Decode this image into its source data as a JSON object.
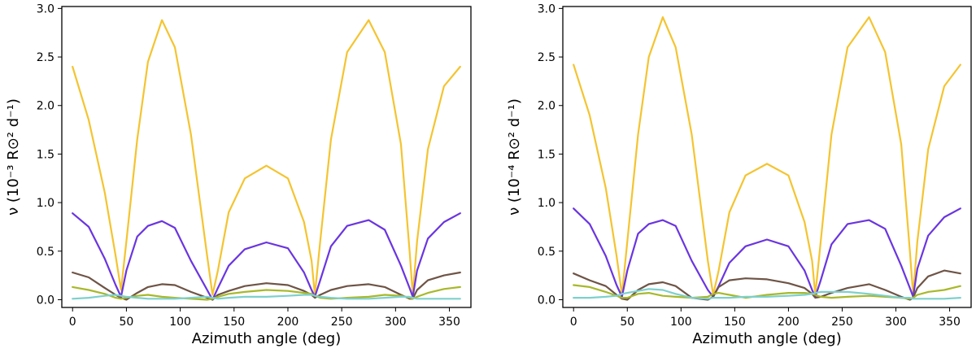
{
  "chart_data": [
    {
      "type": "line",
      "xlabel": "Azimuth angle (deg)",
      "ylabel": "ν (10⁻³ R⊙² d⁻¹)",
      "xlim": [
        -10,
        370
      ],
      "ylim": [
        -0.08,
        3.02
      ],
      "xticks": [
        "0",
        "50",
        "100",
        "150",
        "200",
        "250",
        "300",
        "350"
      ],
      "yticks": [
        "0.0",
        "0.5",
        "1.0",
        "1.5",
        "2.0",
        "2.5",
        "3.0"
      ],
      "grid": false,
      "x": [
        0,
        15,
        30,
        40,
        45,
        50,
        60,
        70,
        83,
        95,
        110,
        125,
        130,
        135,
        145,
        160,
        180,
        200,
        215,
        222,
        225,
        230,
        240,
        255,
        275,
        290,
        305,
        313,
        316,
        320,
        330,
        345,
        360
      ],
      "series": [
        {
          "color": "#f4c430",
          "values": [
            2.4,
            1.85,
            1.1,
            0.45,
            0.1,
            0.6,
            1.65,
            2.45,
            2.88,
            2.6,
            1.7,
            0.45,
            0.05,
            0.3,
            0.9,
            1.25,
            1.38,
            1.25,
            0.8,
            0.4,
            0.05,
            0.6,
            1.65,
            2.55,
            2.88,
            2.55,
            1.6,
            0.5,
            0.05,
            0.6,
            1.55,
            2.2,
            2.4
          ]
        },
        {
          "color": "#6a35e0",
          "values": [
            0.89,
            0.75,
            0.42,
            0.15,
            0.03,
            0.3,
            0.65,
            0.76,
            0.81,
            0.74,
            0.4,
            0.1,
            0.0,
            0.12,
            0.35,
            0.52,
            0.59,
            0.53,
            0.28,
            0.1,
            0.03,
            0.2,
            0.55,
            0.76,
            0.82,
            0.72,
            0.35,
            0.12,
            0.03,
            0.3,
            0.63,
            0.8,
            0.89
          ]
        },
        {
          "color": "#6e5446",
          "values": [
            0.28,
            0.23,
            0.12,
            0.05,
            0.02,
            0.0,
            0.07,
            0.13,
            0.16,
            0.15,
            0.08,
            0.02,
            0.0,
            0.05,
            0.09,
            0.14,
            0.17,
            0.15,
            0.09,
            0.05,
            0.02,
            0.05,
            0.1,
            0.14,
            0.16,
            0.13,
            0.05,
            0.01,
            0.01,
            0.1,
            0.2,
            0.25,
            0.28
          ]
        },
        {
          "color": "#a8b82a",
          "values": [
            0.13,
            0.1,
            0.06,
            0.02,
            0.01,
            0.02,
            0.04,
            0.05,
            0.03,
            0.02,
            0.01,
            0.0,
            0.01,
            0.03,
            0.06,
            0.08,
            0.1,
            0.09,
            0.07,
            0.06,
            0.04,
            0.02,
            0.01,
            0.02,
            0.03,
            0.05,
            0.04,
            0.02,
            0.01,
            0.03,
            0.07,
            0.11,
            0.13
          ]
        },
        {
          "color": "#7dd0cc",
          "values": [
            0.01,
            0.02,
            0.04,
            0.05,
            0.04,
            0.03,
            0.02,
            0.01,
            0.01,
            0.01,
            0.02,
            0.03,
            0.02,
            0.01,
            0.02,
            0.03,
            0.03,
            0.04,
            0.05,
            0.05,
            0.04,
            0.03,
            0.02,
            0.01,
            0.01,
            0.02,
            0.03,
            0.03,
            0.02,
            0.01,
            0.01,
            0.01,
            0.01
          ]
        }
      ]
    },
    {
      "type": "line",
      "xlabel": "Azimuth angle (deg)",
      "ylabel": "ν (10⁻⁴ R⊙² d⁻¹)",
      "xlim": [
        -10,
        370
      ],
      "ylim": [
        -0.08,
        3.02
      ],
      "xticks": [
        "0",
        "50",
        "100",
        "150",
        "200",
        "250",
        "300",
        "350"
      ],
      "yticks": [
        "0.0",
        "0.5",
        "1.0",
        "1.5",
        "2.0",
        "2.5",
        "3.0"
      ],
      "grid": false,
      "x": [
        0,
        15,
        30,
        40,
        45,
        50,
        60,
        70,
        83,
        95,
        110,
        125,
        130,
        135,
        145,
        160,
        180,
        200,
        215,
        222,
        225,
        230,
        240,
        255,
        275,
        290,
        305,
        313,
        316,
        320,
        330,
        345,
        360
      ],
      "series": [
        {
          "color": "#f4c430",
          "values": [
            2.42,
            1.9,
            1.15,
            0.45,
            0.05,
            0.6,
            1.7,
            2.5,
            2.91,
            2.6,
            1.7,
            0.4,
            0.05,
            0.3,
            0.9,
            1.28,
            1.4,
            1.28,
            0.8,
            0.4,
            0.05,
            0.6,
            1.7,
            2.6,
            2.91,
            2.55,
            1.6,
            0.5,
            0.05,
            0.6,
            1.55,
            2.2,
            2.42
          ]
        },
        {
          "color": "#6a35e0",
          "values": [
            0.94,
            0.78,
            0.45,
            0.15,
            0.03,
            0.3,
            0.68,
            0.78,
            0.82,
            0.76,
            0.4,
            0.1,
            0.03,
            0.14,
            0.38,
            0.55,
            0.62,
            0.55,
            0.3,
            0.1,
            0.03,
            0.2,
            0.57,
            0.78,
            0.82,
            0.73,
            0.35,
            0.12,
            0.03,
            0.32,
            0.66,
            0.85,
            0.94
          ]
        },
        {
          "color": "#6e5446",
          "values": [
            0.27,
            0.2,
            0.14,
            0.05,
            0.01,
            0.0,
            0.1,
            0.16,
            0.18,
            0.14,
            0.02,
            0.0,
            0.03,
            0.13,
            0.2,
            0.22,
            0.21,
            0.17,
            0.12,
            0.06,
            0.02,
            0.03,
            0.07,
            0.12,
            0.16,
            0.1,
            0.03,
            0.0,
            0.02,
            0.12,
            0.24,
            0.3,
            0.27
          ]
        },
        {
          "color": "#a8b82a",
          "values": [
            0.15,
            0.13,
            0.08,
            0.04,
            0.02,
            0.02,
            0.06,
            0.07,
            0.04,
            0.03,
            0.02,
            0.03,
            0.06,
            0.07,
            0.05,
            0.02,
            0.05,
            0.07,
            0.07,
            0.06,
            0.05,
            0.03,
            0.02,
            0.03,
            0.04,
            0.03,
            0.02,
            0.01,
            0.02,
            0.05,
            0.08,
            0.1,
            0.14
          ]
        },
        {
          "color": "#7dd0cc",
          "values": [
            0.02,
            0.02,
            0.03,
            0.04,
            0.06,
            0.07,
            0.09,
            0.11,
            0.1,
            0.06,
            0.02,
            0.01,
            0.02,
            0.02,
            0.02,
            0.03,
            0.03,
            0.04,
            0.05,
            0.06,
            0.07,
            0.08,
            0.08,
            0.08,
            0.06,
            0.04,
            0.02,
            0.02,
            0.01,
            0.01,
            0.01,
            0.01,
            0.02
          ]
        }
      ]
    }
  ]
}
